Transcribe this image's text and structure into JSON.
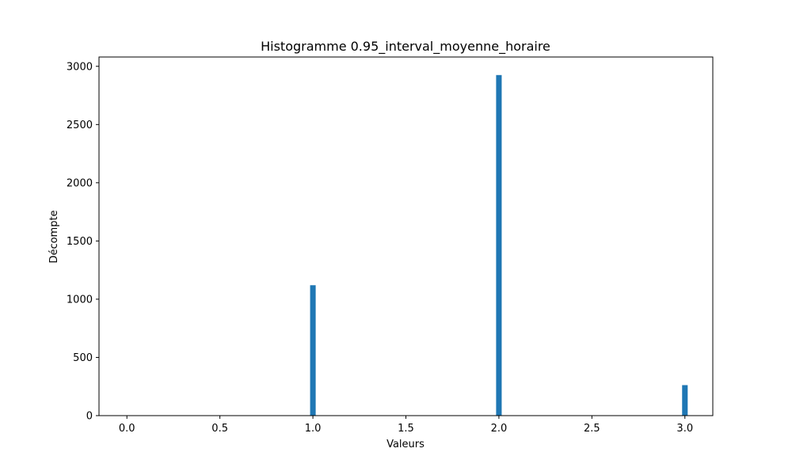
{
  "chart_data": {
    "type": "bar",
    "title": "Histogramme 0.95_interval_moyenne_horaire",
    "xlabel": "Valeurs",
    "ylabel": "Décompte",
    "xlim": [
      -0.15,
      3.15
    ],
    "ylim": [
      0,
      3080
    ],
    "x_ticks": [
      0.0,
      0.5,
      1.0,
      1.5,
      2.0,
      2.5,
      3.0
    ],
    "x_tick_labels": [
      "0.0",
      "0.5",
      "1.0",
      "1.5",
      "2.0",
      "2.5",
      "3.0"
    ],
    "y_ticks": [
      0,
      500,
      1000,
      1500,
      2000,
      2500,
      3000
    ],
    "y_tick_labels": [
      "0",
      "500",
      "1000",
      "1500",
      "2000",
      "2500",
      "3000"
    ],
    "bar_width": 0.03,
    "bars": [
      {
        "x": 0.0,
        "value": 0
      },
      {
        "x": 1.0,
        "value": 1120
      },
      {
        "x": 2.0,
        "value": 2925
      },
      {
        "x": 3.0,
        "value": 262
      }
    ],
    "color": "#1f77b4",
    "grid": false,
    "legend": false
  }
}
